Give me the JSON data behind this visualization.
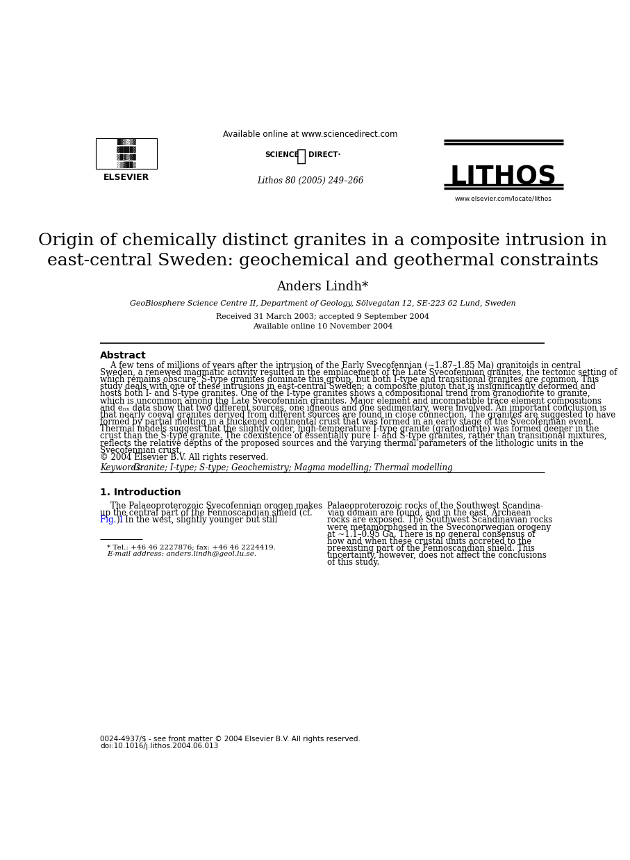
{
  "bg_color": "#ffffff",
  "available_online": "Available online at www.sciencedirect.com",
  "journal_ref": "Lithos 80 (2005) 249–266",
  "journal_name": "LITHOS",
  "journal_url": "www.elsevier.com/locate/lithos",
  "title": "Origin of chemically distinct granites in a composite intrusion in\neast-central Sweden: geochemical and geothermal constraints",
  "author": "Anders Lindh*",
  "affiliation": "GeoBiosphere Science Centre II, Department of Geology, Sölvegatan 12, SE-223 62 Lund, Sweden",
  "dates": "Received 31 March 2003; accepted 9 September 2004\nAvailable online 10 November 2004",
  "abstract_label": "Abstract",
  "abstract_lines": [
    "    A few tens of millions of years after the intrusion of the Early Svecofennian (~1.87–1.85 Ma) granitoids in central",
    "Sweden, a renewed magmatic activity resulted in the emplacement of the Late Svecofennian granites, the tectonic setting of",
    "which remains obscure. S-type granites dominate this group, but both I-type and transitional granites are common. This",
    "study deals with one of these intrusions in east-central Sweden; a composite pluton that is insignificantly deformed and",
    "hosts both I- and S-type granites. One of the I-type granites shows a compositional trend from granodiorite to granite,",
    "which is uncommon among the Late Svecofennian granites. Major element and incompatible trace element compositions",
    "and eₙₓ data show that two different sources, one igneous and one sedimentary, were involved. An important conclusion is",
    "that nearly coeval granites derived from different sources are found in close connection. The granites are suggested to have",
    "formed by partial melting in a thickened continental crust that was formed in an early stage of the Svecofennian event.",
    "Thermal models suggest that the slightly older, high-temperature I-type granite (granodiorite) was formed deeper in the",
    "crust than the S-type granite. The coexistence of essentially pure I- and S-type granites, rather than transitional mixtures,",
    "reflects the relative depths of the proposed sources and the varying thermal parameters of the lithologic units in the",
    "Svecofennian crust.",
    "© 2004 Elsevier B.V. All rights reserved."
  ],
  "keywords_label": "Keywords:",
  "keywords_text": "Granite; I-type; S-type; Geochemistry; Magma modelling; Thermal modelling",
  "section1_num": "1.",
  "section1_title": "Introduction",
  "col1_lines": [
    "    The Palaeoproterozoic Svecofennian orogen makes",
    "up the central part of the Fennoscandian shield (cf.",
    "Fig. 1). In the west, slightly younger but still"
  ],
  "col2_lines": [
    "Palaeoproterozoic rocks of the Southwest Scandina-",
    "vian domain are found, and in the east, Archaean",
    "rocks are exposed. The Southwest Scandinavian rocks",
    "were metamorphosed in the Sveconorwegian orogeny",
    "at ~1.1–0.95 Ga. There is no general consensus of",
    "how and when these crustal units accreted to the",
    "preexisting part of the Fennoscandian shield. This",
    "uncertainty, however, does not affect the conclusions",
    "of this study."
  ],
  "footnote_tel": "* Tel.: +46 46 2227876; fax: +46 46 2224419.",
  "footnote_email": "E-mail address: anders.lindh@geol.lu.se.",
  "footer_issn": "0024-4937/$ - see front matter © 2004 Elsevier B.V. All rights reserved.",
  "footer_doi": "doi:10.1016/j.lithos.2004.06.013"
}
